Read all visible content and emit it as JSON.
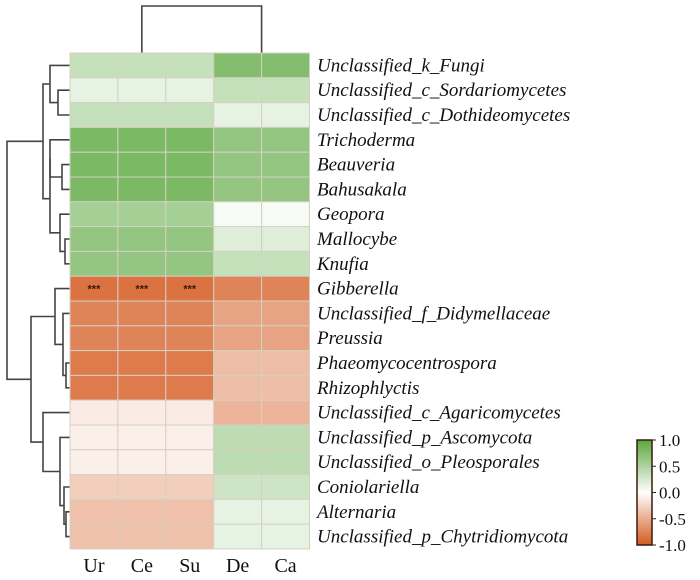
{
  "chart_data": {
    "type": "heatmap",
    "title": "",
    "xlabel": "",
    "ylabel": "",
    "columns": [
      "Ur",
      "Ce",
      "Su",
      "De",
      "Ca"
    ],
    "rows": [
      "Unclassified_k_Fungi",
      "Unclassified_c_Sordariomycetes",
      "Unclassified_c_Dothideomycetes",
      "Trichoderma",
      "Beauveria",
      "Bahusakala",
      "Geopora",
      "Mallocybe",
      "Knufia",
      "Gibberella",
      "Unclassified_f_Didymellaceae",
      "Preussia",
      "Phaeomycocentrospora",
      "Rhizophlyctis",
      "Unclassified_c_Agaricomycetes",
      "Unclassified_p_Ascomycota",
      "Unclassified_o_Pleosporales",
      "Coniolariella",
      "Alternaria",
      "Unclassified_p_Chytridiomycota"
    ],
    "values": [
      [
        0.35,
        0.35,
        0.35,
        0.75,
        0.75
      ],
      [
        0.15,
        0.15,
        0.15,
        0.35,
        0.35
      ],
      [
        0.35,
        0.35,
        0.35,
        0.15,
        0.15
      ],
      [
        0.8,
        0.8,
        0.8,
        0.65,
        0.65
      ],
      [
        0.8,
        0.8,
        0.8,
        0.65,
        0.65
      ],
      [
        0.8,
        0.8,
        0.8,
        0.65,
        0.65
      ],
      [
        0.55,
        0.55,
        0.55,
        0.05,
        0.05
      ],
      [
        0.65,
        0.65,
        0.65,
        0.2,
        0.2
      ],
      [
        0.65,
        0.65,
        0.65,
        0.35,
        0.35
      ],
      [
        -0.85,
        -0.85,
        -0.85,
        -0.75,
        -0.75
      ],
      [
        -0.75,
        -0.75,
        -0.75,
        -0.55,
        -0.55
      ],
      [
        -0.75,
        -0.75,
        -0.75,
        -0.55,
        -0.55
      ],
      [
        -0.8,
        -0.8,
        -0.8,
        -0.4,
        -0.4
      ],
      [
        -0.8,
        -0.8,
        -0.8,
        -0.4,
        -0.4
      ],
      [
        -0.12,
        -0.12,
        -0.12,
        -0.45,
        -0.45
      ],
      [
        -0.1,
        -0.1,
        -0.1,
        0.4,
        0.4
      ],
      [
        -0.1,
        -0.1,
        -0.1,
        0.4,
        0.4
      ],
      [
        -0.3,
        -0.3,
        -0.3,
        0.3,
        0.3
      ],
      [
        -0.38,
        -0.38,
        -0.38,
        0.15,
        0.15
      ],
      [
        -0.38,
        -0.38,
        -0.38,
        0.15,
        0.15
      ]
    ],
    "significance": [
      {
        "row": "Gibberella",
        "column": "Ur",
        "label": "***"
      },
      {
        "row": "Gibberella",
        "column": "Ce",
        "label": "***"
      },
      {
        "row": "Gibberella",
        "column": "Su",
        "label": "***"
      }
    ],
    "color_scale": {
      "min": -1.0,
      "max": 1.0,
      "low_color": "#d45a20",
      "mid_color": "#ffffff",
      "high_color": "#5aa83e",
      "ticks": [
        "1.0",
        "0.5",
        "0.0",
        "-0.5",
        "-1.0"
      ],
      "tick_values": [
        1.0,
        0.5,
        0.0,
        -0.5,
        -1.0
      ]
    },
    "legend_position": "bottom-right",
    "column_dendrogram": "two clusters: (Ur, Ce, Su) and (De, Ca)",
    "row_dendrogram": "two main clusters: rows 1-9 (positive in Ur/Ce/Su) and rows 10-20 (negative in Ur/Ce/Su)",
    "grid": true
  }
}
